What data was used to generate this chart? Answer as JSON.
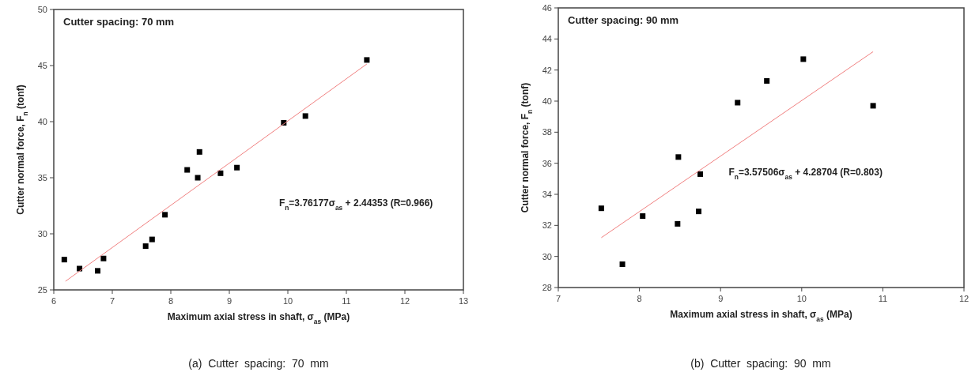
{
  "chart_data": [
    {
      "type": "scatter",
      "title": "Cutter spacing: 70 mm",
      "xlabel": "Maximum axial stress in shaft, σ$_{as}$ (MPa)",
      "ylabel": "Cutter normal force, F$_{n}$ (tonf)",
      "xlim": [
        6,
        13
      ],
      "xticks": [
        6,
        7,
        8,
        9,
        10,
        11,
        12,
        13
      ],
      "ylim": [
        25,
        50
      ],
      "yticks": [
        25,
        30,
        35,
        40,
        45,
        50
      ],
      "grid": false,
      "marker": "square",
      "series": [
        {
          "color": "#000000",
          "x": [
            6.18,
            6.44,
            6.75,
            6.85,
            7.57,
            7.68,
            7.9,
            8.28,
            8.46,
            8.49,
            8.85,
            9.13,
            9.93,
            10.3,
            11.35
          ],
          "values": [
            27.7,
            26.9,
            26.7,
            27.8,
            28.9,
            29.5,
            31.7,
            35.7,
            35.0,
            37.3,
            35.4,
            35.9,
            39.9,
            40.5,
            45.5
          ]
        },
        {
          "type": "line",
          "marker": "none",
          "color": "#f08080",
          "x": [
            6.2,
            11.35
          ],
          "values": [
            25.77,
            45.14
          ]
        }
      ],
      "annotations": [
        "F$_{n}$=3.76177σ$_{as}$ + 2.44353 (R=0.966)",
        "(a)  Cutter  spacing:  70  mm"
      ]
    },
    {
      "type": "scatter",
      "title": "Cutter spacing: 90 mm",
      "xlabel": "Maximum axial stress in shaft, σ$_{as}$ (MPa)",
      "ylabel": "Cutter normal force, F$_{n}$ (tonf)",
      "xlim": [
        7,
        12
      ],
      "xticks": [
        7,
        8,
        9,
        10,
        11,
        12
      ],
      "ylim": [
        28,
        46
      ],
      "yticks": [
        28,
        30,
        32,
        34,
        36,
        38,
        40,
        42,
        44,
        46
      ],
      "grid": false,
      "marker": "square",
      "series": [
        {
          "color": "#000000",
          "x": [
            7.53,
            7.79,
            8.04,
            8.47,
            8.48,
            8.73,
            8.75,
            9.21,
            9.57,
            10.02,
            10.88
          ],
          "values": [
            33.1,
            29.5,
            32.6,
            32.1,
            36.4,
            32.9,
            35.3,
            39.9,
            41.3,
            42.7,
            39.7
          ]
        },
        {
          "type": "line",
          "marker": "none",
          "color": "#f08080",
          "x": [
            7.53,
            10.88
          ],
          "values": [
            31.21,
            43.18
          ]
        }
      ],
      "annotations": [
        "F$_{n}$=3.57506σ$_{as}$ + 4.28704 (R=0.803)",
        "(b)  Cutter  spacing:  90  mm"
      ]
    }
  ]
}
